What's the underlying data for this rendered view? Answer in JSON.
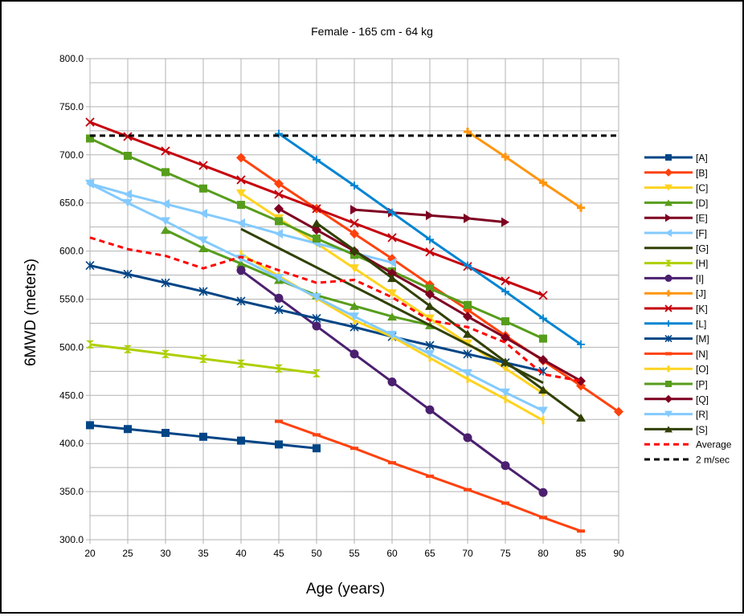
{
  "chart_data": {
    "type": "line",
    "title": "Female - 165 cm - 64 kg",
    "xlabel": "Age (years)",
    "ylabel": "6MWD (meters)",
    "xlim": [
      20,
      90
    ],
    "ylim": [
      300,
      800
    ],
    "x_ticks": [
      "20",
      "25",
      "30",
      "35",
      "40",
      "45",
      "50",
      "55",
      "60",
      "65",
      "70",
      "75",
      "80",
      "85",
      "90"
    ],
    "y_ticks": [
      "300.0",
      "350.0",
      "400.0",
      "450.0",
      "500.0",
      "550.0",
      "600.0",
      "650.0",
      "700.0",
      "750.0",
      "800.0"
    ],
    "grid": true,
    "legend_position": "right",
    "series": [
      {
        "name": "[A]",
        "color": "#004586",
        "marker": "square",
        "dash": false,
        "x": [
          20,
          25,
          30,
          35,
          40,
          45,
          50
        ],
        "values": [
          419,
          415,
          411,
          407,
          403,
          399,
          395
        ]
      },
      {
        "name": "[B]",
        "color": "#ff420e",
        "marker": "diamond",
        "dash": false,
        "x": [
          40,
          45,
          50,
          55,
          60,
          65,
          70,
          75,
          80,
          85,
          90
        ],
        "values": [
          697,
          670,
          644,
          618,
          592,
          565,
          539,
          512,
          486,
          460,
          433
        ]
      },
      {
        "name": "[C]",
        "color": "#ffd320",
        "marker": "triangle-down",
        "dash": false,
        "x": [
          40,
          45,
          50,
          55,
          60,
          65,
          70,
          75,
          80
        ],
        "values": [
          660,
          634,
          608,
          582,
          556,
          530,
          504,
          478,
          452
        ]
      },
      {
        "name": "[D]",
        "color": "#579d1c",
        "marker": "triangle-up",
        "dash": false,
        "x": [
          30,
          35,
          40,
          45,
          50,
          55,
          60,
          65
        ],
        "values": [
          622,
          603,
          587,
          570,
          554,
          543,
          532,
          523
        ]
      },
      {
        "name": "[E]",
        "color": "#7e0021",
        "marker": "triangle-right",
        "dash": false,
        "x": [
          55,
          60,
          65,
          70,
          75
        ],
        "values": [
          643,
          640,
          637,
          634,
          630
        ]
      },
      {
        "name": "[F]",
        "color": "#83caff",
        "marker": "triangle-left",
        "dash": false,
        "x": [
          20,
          25,
          30,
          35,
          40,
          45,
          50,
          55,
          60
        ],
        "values": [
          670,
          659,
          649,
          639,
          629,
          618,
          608,
          598,
          588
        ]
      },
      {
        "name": "[G]",
        "color": "#314004",
        "marker": "bowtie",
        "dash": false,
        "x": [
          40,
          45,
          50,
          55,
          60,
          65,
          70,
          75,
          80
        ],
        "values": [
          623,
          603,
          583,
          563,
          543,
          523,
          503,
          483,
          463
        ]
      },
      {
        "name": "[H]",
        "color": "#aecf00",
        "marker": "hourglass",
        "dash": false,
        "x": [
          20,
          25,
          30,
          35,
          40,
          45,
          50
        ],
        "values": [
          503,
          498,
          493,
          488,
          483,
          478,
          473
        ]
      },
      {
        "name": "[I]",
        "color": "#4b1f6f",
        "marker": "circle",
        "dash": false,
        "x": [
          40,
          45,
          50,
          55,
          60,
          65,
          70,
          75,
          80
        ],
        "values": [
          580,
          551,
          522,
          493,
          464,
          435,
          406,
          377,
          349
        ]
      },
      {
        "name": "[J]",
        "color": "#ff950e",
        "marker": "star",
        "dash": false,
        "x": [
          70,
          75,
          80,
          85
        ],
        "values": [
          724,
          698,
          671,
          645
        ]
      },
      {
        "name": "[K]",
        "color": "#c5000b",
        "marker": "x",
        "dash": false,
        "x": [
          20,
          25,
          30,
          35,
          40,
          45,
          50,
          55,
          60,
          65,
          70,
          75,
          80
        ],
        "values": [
          734,
          719,
          704,
          689,
          674,
          659,
          644,
          629,
          614,
          599,
          584,
          569,
          554
        ]
      },
      {
        "name": "[L]",
        "color": "#0084d1",
        "marker": "plus",
        "dash": false,
        "x": [
          45,
          50,
          55,
          60,
          65,
          70,
          75,
          80,
          85
        ],
        "values": [
          722,
          695,
          668,
          640,
          612,
          585,
          558,
          530,
          503
        ]
      },
      {
        "name": "[M]",
        "color": "#004586",
        "marker": "asterisk",
        "dash": false,
        "x": [
          20,
          25,
          30,
          35,
          40,
          45,
          50,
          55,
          60,
          65,
          70,
          75,
          80
        ],
        "values": [
          585,
          576,
          567,
          558,
          548,
          539,
          530,
          521,
          511,
          502,
          493,
          484,
          475
        ]
      },
      {
        "name": "[N]",
        "color": "#ff420e",
        "marker": "dash",
        "dash": false,
        "x": [
          45,
          50,
          55,
          60,
          65,
          70,
          75,
          80,
          85
        ],
        "values": [
          423,
          409,
          395,
          380,
          366,
          352,
          338,
          323,
          309
        ]
      },
      {
        "name": "[O]",
        "color": "#ffd320",
        "marker": "vbar",
        "dash": false,
        "x": [
          40,
          45,
          50,
          55,
          60,
          65,
          70,
          75,
          80
        ],
        "values": [
          597,
          574,
          551,
          528,
          511,
          489,
          467,
          446,
          424
        ]
      },
      {
        "name": "[P]",
        "color": "#579d1c",
        "marker": "square",
        "dash": false,
        "x": [
          20,
          25,
          30,
          35,
          40,
          45,
          50,
          55,
          60,
          65,
          70,
          75,
          80
        ],
        "values": [
          717,
          699,
          682,
          665,
          648,
          631,
          613,
          596,
          579,
          561,
          544,
          527,
          509
        ]
      },
      {
        "name": "[Q]",
        "color": "#7e0021",
        "marker": "diamond",
        "dash": false,
        "x": [
          45,
          50,
          55,
          60,
          65,
          70,
          75,
          80,
          85
        ],
        "values": [
          644,
          622,
          600,
          577,
          555,
          532,
          510,
          487,
          465
        ]
      },
      {
        "name": "[R]",
        "color": "#83caff",
        "marker": "triangle-down",
        "dash": false,
        "x": [
          20,
          25,
          30,
          35,
          40,
          45,
          50,
          55,
          60,
          65,
          70,
          75,
          80
        ],
        "values": [
          670,
          650,
          631,
          611,
          592,
          572,
          552,
          532,
          513,
          493,
          473,
          453,
          434
        ]
      },
      {
        "name": "[S]",
        "color": "#314004",
        "marker": "triangle-up",
        "dash": false,
        "x": [
          50,
          55,
          60,
          65,
          70,
          75,
          80,
          85
        ],
        "values": [
          629,
          601,
          572,
          543,
          514,
          485,
          456,
          427
        ]
      },
      {
        "name": "Average",
        "color": "#ff0000",
        "marker": "none",
        "dash": true,
        "x": [
          20,
          25,
          30,
          35,
          40,
          45,
          50,
          55,
          60,
          65,
          70,
          75,
          80,
          85
        ],
        "values": [
          614,
          602,
          595,
          582,
          594,
          580,
          567,
          570,
          552,
          528,
          521,
          505,
          472,
          465
        ]
      },
      {
        "name": "2 m/sec",
        "color": "#000000",
        "marker": "none",
        "dash": true,
        "x": [
          20,
          90
        ],
        "values": [
          720,
          720
        ]
      }
    ]
  }
}
